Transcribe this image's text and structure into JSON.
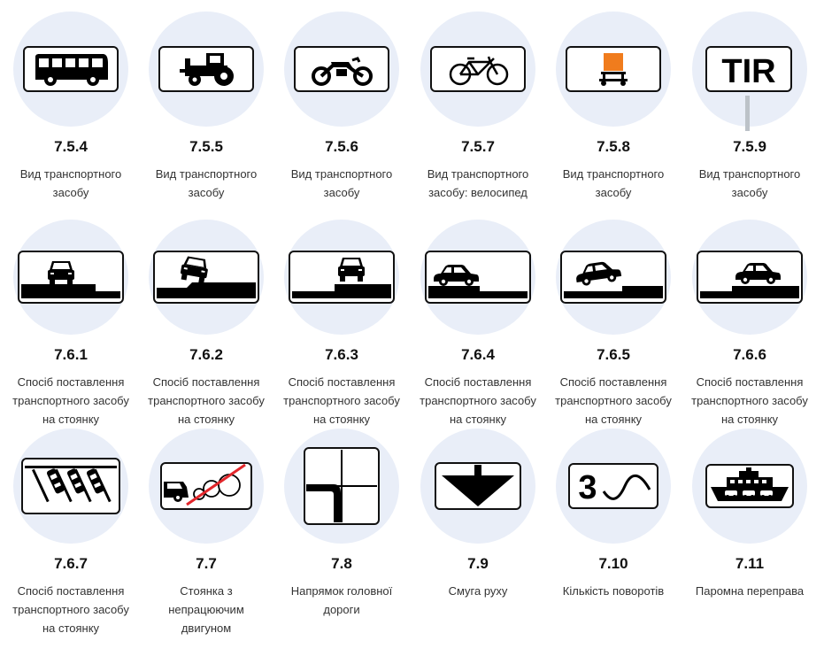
{
  "signs": [
    {
      "code": "7.5.4",
      "desc": "Вид транспортного засобу",
      "icon": "bus-icon"
    },
    {
      "code": "7.5.5",
      "desc": "Вид транспортного засобу",
      "icon": "tractor-icon"
    },
    {
      "code": "7.5.6",
      "desc": "Вид транспортного засобу",
      "icon": "motorcycle-icon"
    },
    {
      "code": "7.5.7",
      "desc": "Вид транспортного засобу: велосипед",
      "icon": "bicycle-icon"
    },
    {
      "code": "7.5.8",
      "desc": "Вид транспортного засобу",
      "icon": "dangerous-cargo-icon"
    },
    {
      "code": "7.5.9",
      "desc": "Вид транспортного засобу",
      "icon": "tir-icon",
      "text": "TIR"
    },
    {
      "code": "7.6.1",
      "desc": "Спосіб поставлення транспортного засобу на стоянку",
      "icon": "parking-on-road-icon"
    },
    {
      "code": "7.6.2",
      "desc": "Спосіб поставлення транспортного засобу на стоянку",
      "icon": "parking-half-sidewalk-icon"
    },
    {
      "code": "7.6.3",
      "desc": "Спосіб поставлення транспортного засобу на стоянку",
      "icon": "parking-sidewalk-edge-icon"
    },
    {
      "code": "7.6.4",
      "desc": "Спосіб поставлення транспортного засобу на стоянку",
      "icon": "parking-car-side-icon"
    },
    {
      "code": "7.6.5",
      "desc": "Спосіб поставлення транспортного засобу на стоянку",
      "icon": "parking-car-tilted-icon"
    },
    {
      "code": "7.6.6",
      "desc": "Спосіб поставлення транспортного засобу на стоянку",
      "icon": "parking-car-raised-icon"
    },
    {
      "code": "7.6.7",
      "desc": "Спосіб поставлення транспортного засобу на стоянку",
      "icon": "parking-angled-icon"
    },
    {
      "code": "7.7",
      "desc": "Стоянка з непрацюючим двигуном",
      "icon": "engine-off-parking-icon"
    },
    {
      "code": "7.8",
      "desc": "Напрямок головної дороги",
      "icon": "main-road-direction-icon"
    },
    {
      "code": "7.9",
      "desc": "Смуга руху",
      "icon": "lane-arrow-icon"
    },
    {
      "code": "7.10",
      "desc": "Кількість поворотів",
      "icon": "number-of-turns-icon",
      "text": "3"
    },
    {
      "code": "7.11",
      "desc": "Паромна переправа",
      "icon": "ferry-icon"
    }
  ],
  "colors": {
    "circle": "#e9eef8",
    "sign_border": "#111111",
    "cargo_orange": "#f07c1d",
    "pole": "#bcc2c8"
  }
}
